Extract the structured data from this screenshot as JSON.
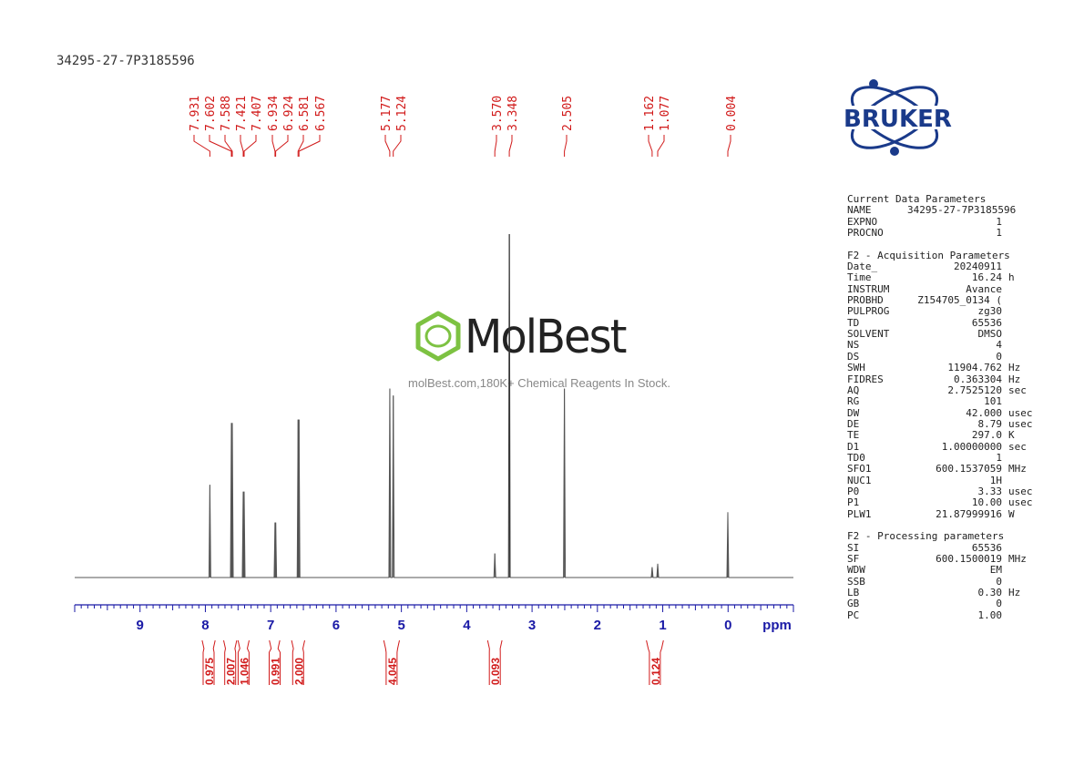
{
  "sample_id": "34295-27-7P3185596",
  "watermark": {
    "name": "MolBest",
    "tagline": "molBest.com,180K+ Chemical Reagents In Stock."
  },
  "logo": {
    "text": "BRUKER"
  },
  "colors": {
    "peak_label": "#d11a1a",
    "axis": "#1a1aa6",
    "spectrum": "#555555",
    "logo": "#1a3a8a",
    "watermark_green": "#7dc242"
  },
  "chart_data": {
    "type": "line",
    "title": "",
    "xlabel": "ppm",
    "ylabel": "",
    "xlim": [
      10.0,
      -1.0
    ],
    "x_ticks": [
      9,
      8,
      7,
      6,
      5,
      4,
      3,
      2,
      1,
      0
    ],
    "tick_labels": [
      "9",
      "8",
      "7",
      "6",
      "5",
      "4",
      "3",
      "2",
      "1",
      "0"
    ],
    "peak_labels": [
      "7.931",
      "7.602",
      "7.588",
      "7.421",
      "7.407",
      "6.934",
      "6.924",
      "6.581",
      "6.567",
      "5.177",
      "5.124",
      "3.570",
      "3.348",
      "2.505",
      "1.162",
      "1.077",
      "0.004"
    ],
    "peaks": [
      {
        "x": 7.931,
        "intensity": 0.27
      },
      {
        "x": 7.602,
        "intensity": 0.45
      },
      {
        "x": 7.588,
        "intensity": 0.45
      },
      {
        "x": 7.421,
        "intensity": 0.25
      },
      {
        "x": 7.407,
        "intensity": 0.25
      },
      {
        "x": 6.934,
        "intensity": 0.16
      },
      {
        "x": 6.924,
        "intensity": 0.16
      },
      {
        "x": 6.581,
        "intensity": 0.46
      },
      {
        "x": 6.567,
        "intensity": 0.46
      },
      {
        "x": 5.177,
        "intensity": 0.55
      },
      {
        "x": 5.124,
        "intensity": 0.53
      },
      {
        "x": 3.57,
        "intensity": 0.07
      },
      {
        "x": 3.348,
        "intensity": 1.0
      },
      {
        "x": 2.505,
        "intensity": 0.55
      },
      {
        "x": 1.162,
        "intensity": 0.03
      },
      {
        "x": 1.077,
        "intensity": 0.04
      },
      {
        "x": 0.004,
        "intensity": 0.19
      }
    ],
    "integrals": [
      {
        "from": 8.05,
        "to": 7.85,
        "value": "0.975"
      },
      {
        "from": 7.72,
        "to": 7.52,
        "value": "2.007"
      },
      {
        "from": 7.5,
        "to": 7.33,
        "value": "1.046"
      },
      {
        "from": 7.02,
        "to": 6.86,
        "value": "0.991"
      },
      {
        "from": 6.68,
        "to": 6.48,
        "value": "2.000"
      },
      {
        "from": 5.27,
        "to": 5.03,
        "value": "4.045"
      },
      {
        "from": 3.68,
        "to": 3.46,
        "value": "0.093"
      },
      {
        "from": 1.25,
        "to": 0.99,
        "value": "0.124"
      }
    ]
  },
  "params": {
    "sections": [
      {
        "title": "Current Data Parameters",
        "rows": [
          {
            "key": "NAME",
            "val": "34295-27-7P3185596",
            "unit": ""
          },
          {
            "key": "EXPNO",
            "val": "1",
            "unit": ""
          },
          {
            "key": "PROCNO",
            "val": "1",
            "unit": ""
          }
        ]
      },
      {
        "title": "F2 - Acquisition Parameters",
        "rows": [
          {
            "key": "Date_",
            "val": "20240911",
            "unit": ""
          },
          {
            "key": "Time",
            "val": "16.24",
            "unit": "h"
          },
          {
            "key": "INSTRUM",
            "val": "Avance",
            "unit": ""
          },
          {
            "key": "PROBHD",
            "val": "Z154705_0134 (",
            "unit": ""
          },
          {
            "key": "PULPROG",
            "val": "zg30",
            "unit": ""
          },
          {
            "key": "TD",
            "val": "65536",
            "unit": ""
          },
          {
            "key": "SOLVENT",
            "val": "DMSO",
            "unit": ""
          },
          {
            "key": "NS",
            "val": "4",
            "unit": ""
          },
          {
            "key": "DS",
            "val": "0",
            "unit": ""
          },
          {
            "key": "SWH",
            "val": "11904.762",
            "unit": "Hz"
          },
          {
            "key": "FIDRES",
            "val": "0.363304",
            "unit": "Hz"
          },
          {
            "key": "AQ",
            "val": "2.7525120",
            "unit": "sec"
          },
          {
            "key": "RG",
            "val": "101",
            "unit": ""
          },
          {
            "key": "DW",
            "val": "42.000",
            "unit": "usec"
          },
          {
            "key": "DE",
            "val": "8.79",
            "unit": "usec"
          },
          {
            "key": "TE",
            "val": "297.0",
            "unit": "K"
          },
          {
            "key": "D1",
            "val": "1.00000000",
            "unit": "sec"
          },
          {
            "key": "TD0",
            "val": "1",
            "unit": ""
          },
          {
            "key": "SFO1",
            "val": "600.1537059",
            "unit": "MHz"
          },
          {
            "key": "NUC1",
            "val": "1H",
            "unit": ""
          },
          {
            "key": "P0",
            "val": "3.33",
            "unit": "usec"
          },
          {
            "key": "P1",
            "val": "10.00",
            "unit": "usec"
          },
          {
            "key": "PLW1",
            "val": "21.87999916",
            "unit": "W"
          }
        ]
      },
      {
        "title": "F2 - Processing parameters",
        "rows": [
          {
            "key": "SI",
            "val": "65536",
            "unit": ""
          },
          {
            "key": "SF",
            "val": "600.1500019",
            "unit": "MHz"
          },
          {
            "key": "WDW",
            "val": "EM",
            "unit": ""
          },
          {
            "key": "SSB",
            "val": "0",
            "unit": ""
          },
          {
            "key": "LB",
            "val": "0.30",
            "unit": "Hz"
          },
          {
            "key": "GB",
            "val": "0",
            "unit": ""
          },
          {
            "key": "PC",
            "val": "1.00",
            "unit": ""
          }
        ]
      }
    ]
  }
}
